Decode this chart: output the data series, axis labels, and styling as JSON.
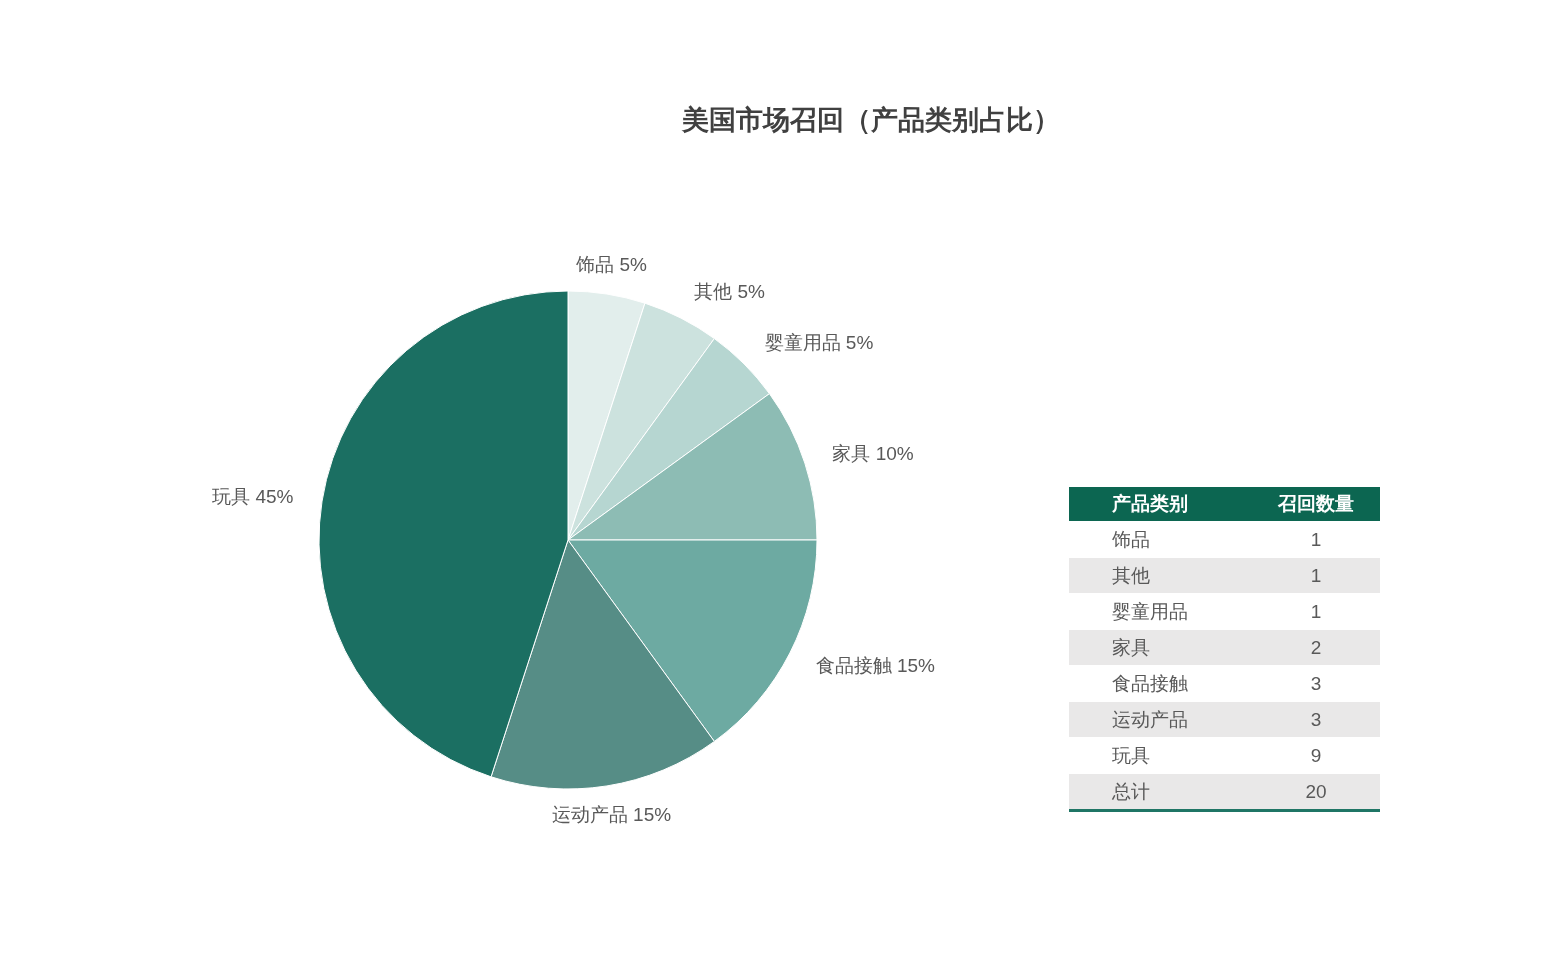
{
  "chart_data": [
    {
      "type": "pie",
      "title": "美国市场召回（产品类别占比）",
      "categories": [
        "饰品",
        "其他",
        "婴童用品",
        "家具",
        "食品接触",
        "运动产品",
        "玩具"
      ],
      "values": [
        5,
        5,
        5,
        10,
        15,
        15,
        45
      ],
      "colors": [
        "#e2eeec",
        "#cce2de",
        "#b6d6d1",
        "#8dbcb4",
        "#6daaa2",
        "#568d86",
        "#1b6f62"
      ],
      "value_labels": [
        "5%",
        "5%",
        "5%",
        "10%",
        "15%",
        "15%",
        "45%"
      ]
    },
    {
      "type": "other",
      "xlabel": "产品类别",
      "ylabel": "召回数量",
      "categories": [
        "饰品",
        "其他",
        "婴童用品",
        "家具",
        "食品接触",
        "运动产品",
        "玩具"
      ],
      "values": [
        1,
        1,
        1,
        2,
        3,
        3,
        9
      ],
      "data_labels": true,
      "totals": [
        "20"
      ],
      "annotations": [
        "总计"
      ]
    }
  ]
}
